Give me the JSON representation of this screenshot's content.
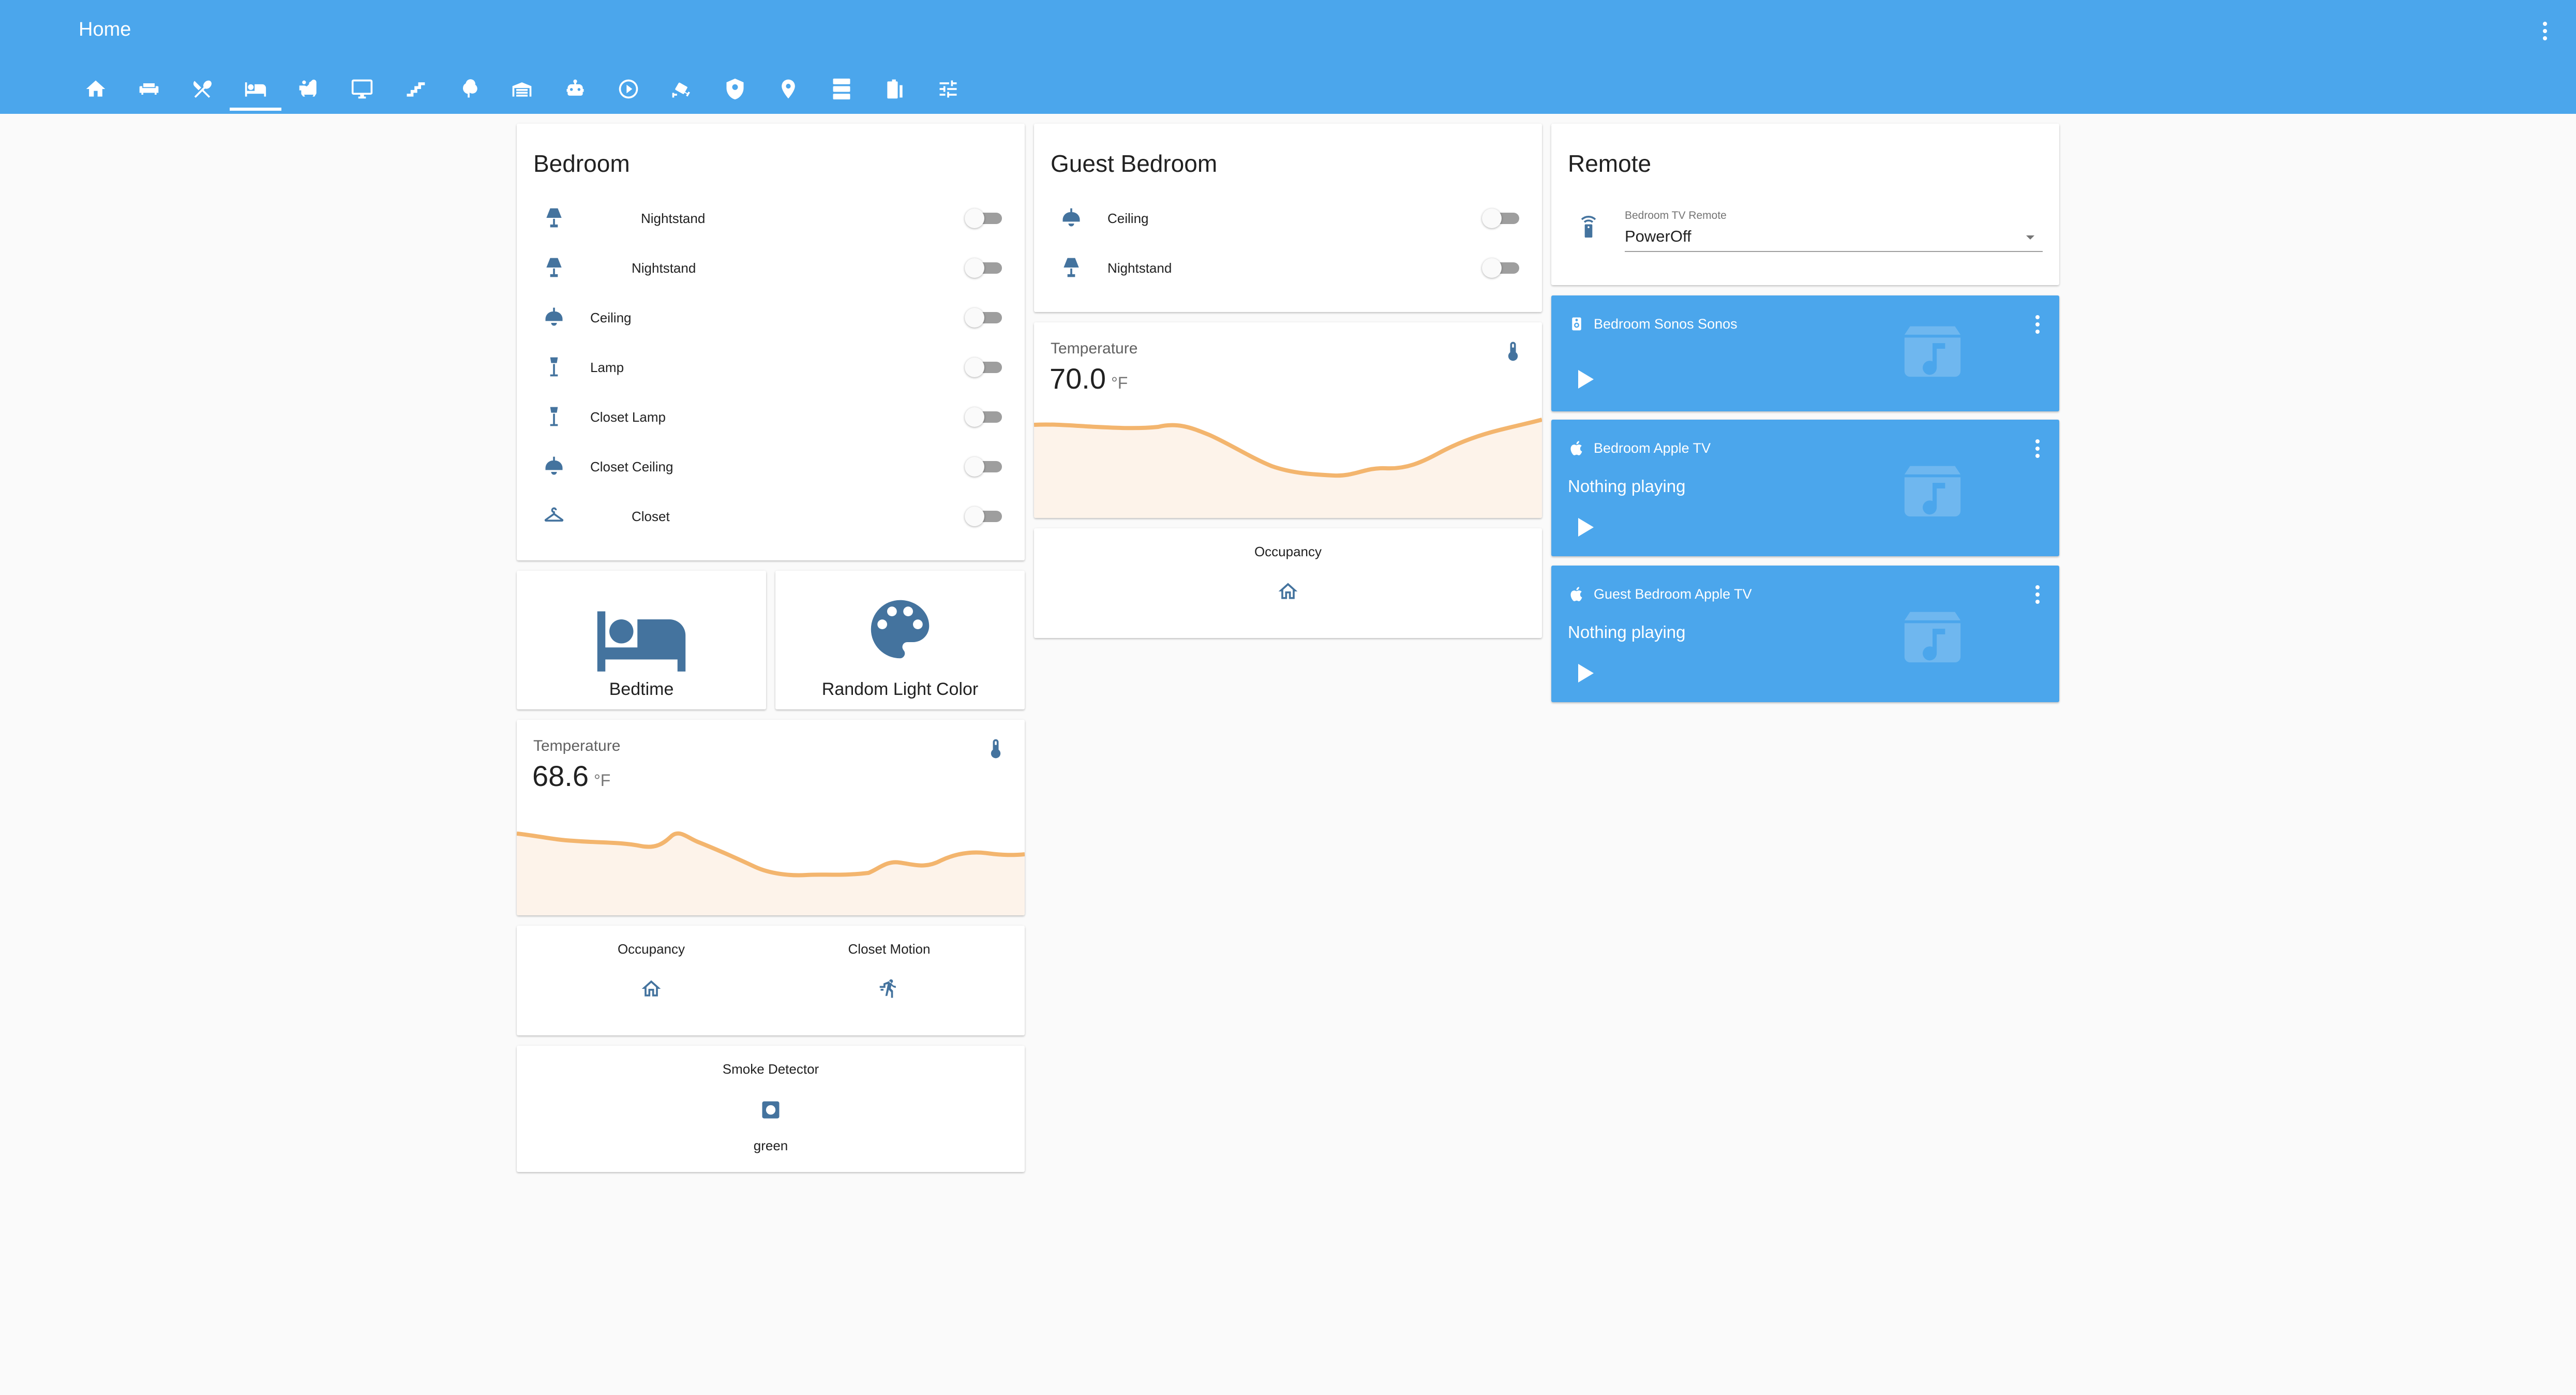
{
  "header": {
    "title": "Home",
    "tabs": [
      {
        "icon": "home-icon"
      },
      {
        "icon": "sofa-icon"
      },
      {
        "icon": "silverware-icon"
      },
      {
        "icon": "bed-icon",
        "active": true
      },
      {
        "icon": "bathtub-icon"
      },
      {
        "icon": "desktop-icon"
      },
      {
        "icon": "stairs-icon"
      },
      {
        "icon": "tree-icon"
      },
      {
        "icon": "garage-icon"
      },
      {
        "icon": "robot-icon"
      },
      {
        "icon": "play-circle-icon"
      },
      {
        "icon": "cctv-icon"
      },
      {
        "icon": "shield-icon"
      },
      {
        "icon": "map-marker-icon"
      },
      {
        "icon": "server-icon"
      },
      {
        "icon": "battery-icon"
      },
      {
        "icon": "tune-icon"
      }
    ]
  },
  "bedroom": {
    "title": "Bedroom",
    "rows": [
      {
        "label": "Nightstand",
        "icon": "lamp-icon"
      },
      {
        "label": "Nightstand",
        "icon": "lamp-icon"
      },
      {
        "label": "Ceiling",
        "icon": "ceiling-light-icon"
      },
      {
        "label": "Lamp",
        "icon": "floor-lamp-icon"
      },
      {
        "label": "Closet Lamp",
        "icon": "floor-lamp-icon"
      },
      {
        "label": "Closet Ceiling",
        "icon": "ceiling-light-icon"
      },
      {
        "label": "Closet",
        "icon": "hanger-icon"
      }
    ]
  },
  "scenes": {
    "bedtime": "Bedtime",
    "random_color": "Random Light Color"
  },
  "bedroom_temp": {
    "name": "Temperature",
    "value": "68.6",
    "unit": "°F"
  },
  "bedroom_status": {
    "occupancy": "Occupancy",
    "closet_motion": "Closet Motion"
  },
  "smoke": {
    "name": "Smoke Detector",
    "state": "green"
  },
  "guest": {
    "title": "Guest Bedroom",
    "rows": [
      {
        "label": "Ceiling",
        "icon": "ceiling-light-icon"
      },
      {
        "label": "Nightstand",
        "icon": "lamp-icon"
      }
    ]
  },
  "guest_temp": {
    "name": "Temperature",
    "value": "70.0",
    "unit": "°F"
  },
  "guest_status": {
    "occupancy": "Occupancy"
  },
  "remote": {
    "title": "Remote",
    "select_label": "Bedroom TV Remote",
    "select_value": "PowerOff"
  },
  "media": [
    {
      "name": "Bedroom Sonos Sonos",
      "state": ""
    },
    {
      "name": "Bedroom Apple TV",
      "state": "Nothing playing"
    },
    {
      "name": "Guest Bedroom Apple TV",
      "state": "Nothing playing"
    }
  ],
  "colors": {
    "primary": "#4ba6ec",
    "icon": "#44739e",
    "graph_line": "#f3b56e",
    "graph_fill": "#fdf3ea"
  }
}
